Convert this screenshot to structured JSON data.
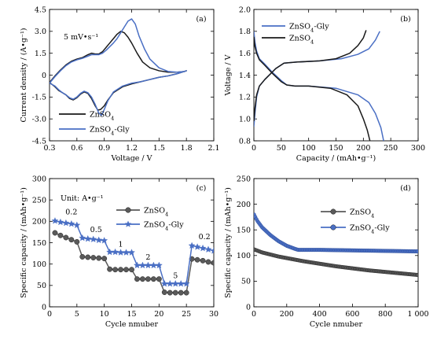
{
  "colors": {
    "black_series": "#1a1a1a",
    "blue_series": "#4a6fc4",
    "gray_marker": "#5a5a5a"
  },
  "chart_data": [
    {
      "id": "a",
      "type": "line",
      "panel_label": "(a)",
      "annotation": "5 mV•s⁻¹",
      "xlabel": "Voltage / V",
      "ylabel": "Current density / (A•g⁻¹)",
      "xlim": [
        0.3,
        2.1
      ],
      "ylim": [
        -4.5,
        4.5
      ],
      "xticks": [
        "0.3",
        "0.6",
        "0.9",
        "1.2",
        "1.5",
        "1.8",
        "2.1"
      ],
      "yticks": [
        "-4.5",
        "-3.0",
        "-1.5",
        "0",
        "1.5",
        "3.0",
        "4.5"
      ],
      "legend_position": "lower-left",
      "series": [
        {
          "name": "ZnSO₄",
          "color": "#1a1a1a",
          "x": [
            0.3,
            0.36,
            0.42,
            0.48,
            0.54,
            0.6,
            0.66,
            0.72,
            0.76,
            0.8,
            0.84,
            0.88,
            0.92,
            0.96,
            1.0,
            1.04,
            1.08,
            1.12,
            1.16,
            1.2,
            1.26,
            1.32,
            1.4,
            1.5,
            1.6,
            1.7,
            1.78,
            1.8,
            1.7,
            1.6,
            1.5,
            1.4,
            1.3,
            1.2,
            1.1,
            1.0,
            0.94,
            0.9,
            0.86,
            0.83,
            0.8,
            0.76,
            0.72,
            0.68,
            0.64,
            0.6,
            0.56,
            0.52,
            0.48,
            0.44,
            0.4,
            0.36,
            0.3
          ],
          "y": [
            -0.5,
            -0.05,
            0.35,
            0.7,
            0.95,
            1.1,
            1.2,
            1.4,
            1.5,
            1.45,
            1.45,
            1.6,
            1.9,
            2.2,
            2.5,
            2.8,
            3.0,
            2.9,
            2.6,
            2.2,
            1.5,
            0.9,
            0.5,
            0.3,
            0.2,
            0.2,
            0.25,
            0.3,
            0.1,
            -0.05,
            -0.15,
            -0.3,
            -0.45,
            -0.6,
            -0.8,
            -1.2,
            -1.7,
            -2.1,
            -2.35,
            -2.4,
            -2.1,
            -1.6,
            -1.25,
            -1.15,
            -1.3,
            -1.55,
            -1.7,
            -1.6,
            -1.35,
            -1.2,
            -1.05,
            -0.8,
            -0.5
          ]
        },
        {
          "name": "ZnSO₄-Gly",
          "color": "#4a6fc4",
          "x": [
            0.3,
            0.36,
            0.42,
            0.48,
            0.54,
            0.6,
            0.66,
            0.72,
            0.76,
            0.8,
            0.84,
            0.88,
            0.92,
            0.96,
            1.0,
            1.04,
            1.08,
            1.12,
            1.16,
            1.2,
            1.24,
            1.28,
            1.34,
            1.4,
            1.5,
            1.6,
            1.7,
            1.78,
            1.8,
            1.7,
            1.6,
            1.5,
            1.4,
            1.3,
            1.2,
            1.1,
            1.0,
            0.94,
            0.9,
            0.87,
            0.84,
            0.8,
            0.76,
            0.72,
            0.68,
            0.64,
            0.6,
            0.56,
            0.52,
            0.48,
            0.44,
            0.4,
            0.36,
            0.3
          ],
          "y": [
            -0.55,
            -0.1,
            0.3,
            0.65,
            0.9,
            1.05,
            1.15,
            1.3,
            1.4,
            1.4,
            1.4,
            1.5,
            1.7,
            1.95,
            2.2,
            2.5,
            2.9,
            3.3,
            3.7,
            3.85,
            3.5,
            2.7,
            1.8,
            1.1,
            0.5,
            0.25,
            0.2,
            0.25,
            0.3,
            0.1,
            -0.05,
            -0.15,
            -0.3,
            -0.45,
            -0.55,
            -0.75,
            -1.15,
            -1.75,
            -2.35,
            -2.75,
            -2.6,
            -2.0,
            -1.5,
            -1.2,
            -1.1,
            -1.25,
            -1.5,
            -1.65,
            -1.55,
            -1.35,
            -1.2,
            -1.0,
            -0.75,
            -0.55
          ]
        }
      ]
    },
    {
      "id": "b",
      "type": "line",
      "panel_label": "(b)",
      "xlabel": "Capacity / (mAh•g⁻¹)",
      "ylabel": "Voltage / V",
      "xlim": [
        0,
        300
      ],
      "ylim": [
        0.8,
        2.0
      ],
      "xticks": [
        "0",
        "50",
        "100",
        "150",
        "200",
        "250",
        "300"
      ],
      "yticks": [
        "0.8",
        "1.0",
        "1.2",
        "1.4",
        "1.6",
        "1.8",
        "2.0"
      ],
      "legend_position": "top-left",
      "series": [
        {
          "name": "ZnSO₄-Gly",
          "color": "#4a6fc4",
          "role": "charge",
          "x": [
            0,
            2,
            5,
            10,
            20,
            30,
            40,
            55,
            80,
            120,
            160,
            190,
            210,
            222,
            230
          ],
          "y": [
            0.93,
            1.05,
            1.2,
            1.3,
            1.36,
            1.41,
            1.46,
            1.51,
            1.52,
            1.53,
            1.55,
            1.59,
            1.64,
            1.72,
            1.8
          ]
        },
        {
          "name": "ZnSO₄-Gly",
          "color": "#4a6fc4",
          "role": "discharge",
          "x": [
            0,
            2,
            5,
            10,
            20,
            35,
            50,
            60,
            75,
            100,
            150,
            190,
            210,
            222,
            232,
            237
          ],
          "y": [
            1.8,
            1.7,
            1.62,
            1.55,
            1.5,
            1.42,
            1.35,
            1.31,
            1.3,
            1.3,
            1.28,
            1.22,
            1.15,
            1.05,
            0.92,
            0.8
          ]
        },
        {
          "name": "ZnSO₄",
          "color": "#1a1a1a",
          "role": "charge",
          "x": [
            0,
            2,
            5,
            10,
            20,
            30,
            40,
            55,
            80,
            120,
            150,
            175,
            190,
            200,
            205
          ],
          "y": [
            0.98,
            1.1,
            1.22,
            1.3,
            1.36,
            1.41,
            1.46,
            1.51,
            1.52,
            1.53,
            1.55,
            1.6,
            1.67,
            1.74,
            1.81
          ]
        },
        {
          "name": "ZnSO₄",
          "color": "#1a1a1a",
          "role": "discharge",
          "x": [
            0,
            2,
            5,
            10,
            20,
            35,
            50,
            60,
            75,
            100,
            140,
            170,
            190,
            200,
            207,
            212
          ],
          "y": [
            1.75,
            1.66,
            1.6,
            1.54,
            1.49,
            1.41,
            1.34,
            1.31,
            1.3,
            1.3,
            1.28,
            1.22,
            1.12,
            1.0,
            0.9,
            0.8
          ]
        }
      ]
    },
    {
      "id": "c",
      "type": "line",
      "panel_label": "(c)",
      "annotation": "Unit: A•g⁻¹",
      "rate_labels": [
        {
          "text": "0.2",
          "x": 4,
          "y": 216
        },
        {
          "text": "0.5",
          "x": 8.5,
          "y": 175
        },
        {
          "text": "1",
          "x": 13,
          "y": 141
        },
        {
          "text": "2",
          "x": 18,
          "y": 110
        },
        {
          "text": "5",
          "x": 23,
          "y": 67
        },
        {
          "text": "0.2",
          "x": 28.3,
          "y": 158
        }
      ],
      "xlabel": "Cycle nmuber",
      "ylabel": "Specific capacity / (mAh•g⁻¹)",
      "xlim": [
        0,
        30
      ],
      "ylim": [
        0,
        300
      ],
      "xticks": [
        "0",
        "5",
        "10",
        "15",
        "20",
        "25",
        "30"
      ],
      "yticks": [
        "0",
        "50",
        "100",
        "150",
        "200",
        "250",
        "300"
      ],
      "legend_position": "top-right",
      "x": [
        1,
        2,
        3,
        4,
        5,
        6,
        7,
        8,
        9,
        10,
        11,
        12,
        13,
        14,
        15,
        16,
        17,
        18,
        19,
        20,
        21,
        22,
        23,
        24,
        25,
        26,
        27,
        28,
        29,
        30
      ],
      "series": [
        {
          "name": "ZnSO₄",
          "color": "#5a5a5a",
          "marker": "circle",
          "values": [
            173,
            167,
            162,
            157,
            152,
            117,
            116,
            115,
            114,
            113,
            88,
            87,
            87,
            87,
            87,
            65,
            65,
            65,
            65,
            65,
            34,
            33,
            33,
            33,
            33,
            112,
            110,
            108,
            105,
            103
          ]
        },
        {
          "name": "ZnSO₄-Gly",
          "color": "#4a6fc4",
          "marker": "star",
          "values": [
            201,
            198,
            196,
            194,
            191,
            161,
            159,
            158,
            156,
            155,
            128,
            128,
            127,
            127,
            127,
            97,
            97,
            97,
            97,
            97,
            54,
            54,
            54,
            54,
            54,
            143,
            140,
            137,
            134,
            131
          ]
        }
      ]
    },
    {
      "id": "d",
      "type": "line",
      "panel_label": "(d)",
      "xlabel": "Cycle nmuber",
      "ylabel": "Specific capacity / (mAh•g⁻¹)",
      "xlim": [
        0,
        1000
      ],
      "ylim": [
        0,
        250
      ],
      "xticks": [
        "0",
        "200",
        "400",
        "600",
        "800",
        "1 000"
      ],
      "yticks": [
        "0",
        "50",
        "100",
        "150",
        "200",
        "250"
      ],
      "legend_position": "center-right",
      "series": [
        {
          "name": "ZnSO₄",
          "color": "#5a5a5a",
          "marker": "circle",
          "x": [
            1,
            50,
            100,
            150,
            200,
            300,
            400,
            500,
            600,
            700,
            800,
            900,
            1000
          ],
          "y": [
            112,
            106,
            102,
            98,
            95,
            89,
            84,
            79,
            75,
            71,
            68,
            65,
            62
          ]
        },
        {
          "name": "ZnSO₄-Gly",
          "color": "#4a6fc4",
          "marker": "circle",
          "x": [
            1,
            20,
            50,
            100,
            150,
            200,
            250,
            270,
            400,
            600,
            800,
            1000
          ],
          "y": [
            180,
            168,
            155,
            140,
            128,
            119,
            113,
            111,
            111,
            110,
            109,
            108
          ]
        }
      ]
    }
  ]
}
